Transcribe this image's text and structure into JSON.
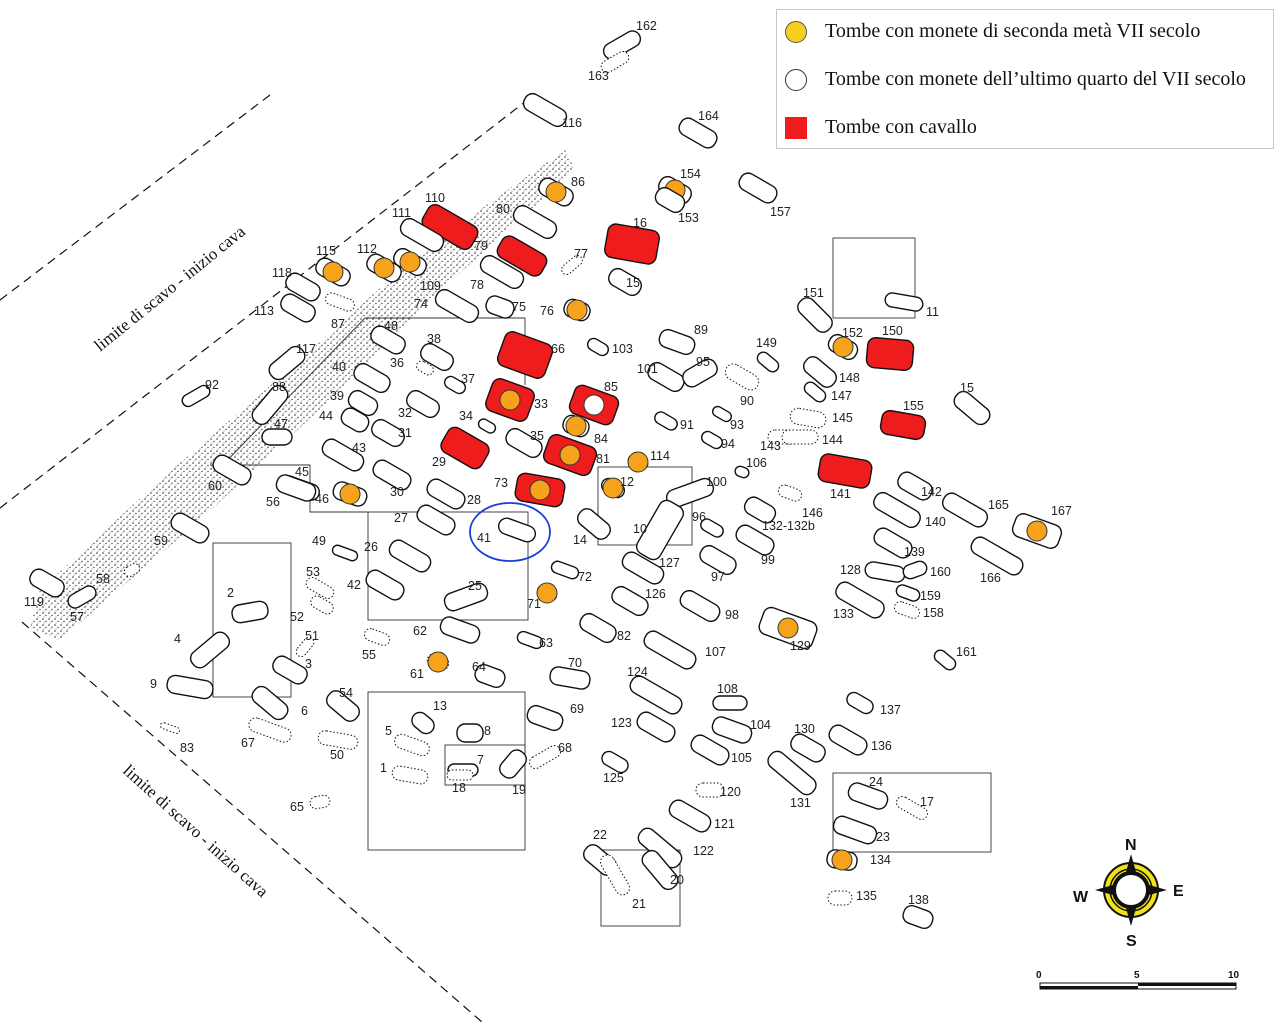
{
  "legend": {
    "items": [
      {
        "label": "Tombe con monete di seconda metà VII secolo",
        "symbol": "yellow-circle",
        "color": "#f9cf1f"
      },
      {
        "label": "Tombe con monete dell’ultimo quarto del VII secolo",
        "symbol": "white-circle",
        "color": "#ffffff"
      },
      {
        "label": "Tombe con cavallo",
        "symbol": "red-square",
        "color": "#ee1c1c"
      }
    ]
  },
  "boundaries": {
    "top_label": "limite di scavo - inizio cava",
    "bottom_label": "limite di scavo - inizio cava"
  },
  "compass": {
    "n": "N",
    "e": "E",
    "s": "S",
    "w": "W"
  },
  "scale": {
    "ticks": [
      "0",
      "5",
      "10"
    ]
  },
  "colors": {
    "horse": "#ee1c1c",
    "coin_marker": "#f7a21b",
    "highlight": "#1a3fd6"
  },
  "highlighted_tomb": "41",
  "tombs": [
    {
      "n": "162"
    },
    {
      "n": "163"
    },
    {
      "n": "116"
    },
    {
      "n": "164"
    },
    {
      "n": "86",
      "coin": true
    },
    {
      "n": "154",
      "coin": true
    },
    {
      "n": "153"
    },
    {
      "n": "157"
    },
    {
      "n": "110",
      "horse": true
    },
    {
      "n": "111"
    },
    {
      "n": "80"
    },
    {
      "n": "16",
      "horse": true
    },
    {
      "n": "79",
      "horse": true
    },
    {
      "n": "77"
    },
    {
      "n": "115",
      "coin": true
    },
    {
      "n": "112",
      "coin": true
    },
    {
      "n": "109",
      "coin": true
    },
    {
      "n": "118"
    },
    {
      "n": "78"
    },
    {
      "n": "15"
    },
    {
      "n": "113"
    },
    {
      "n": "74"
    },
    {
      "n": "75"
    },
    {
      "n": "76",
      "coin": true
    },
    {
      "n": "87"
    },
    {
      "n": "48"
    },
    {
      "n": "89"
    },
    {
      "n": "151"
    },
    {
      "n": "11"
    },
    {
      "n": "152",
      "coin": true
    },
    {
      "n": "150",
      "horse": true
    },
    {
      "n": "66",
      "horse": true
    },
    {
      "n": "103"
    },
    {
      "n": "38"
    },
    {
      "n": "117"
    },
    {
      "n": "36"
    },
    {
      "n": "40"
    },
    {
      "n": "37"
    },
    {
      "n": "101"
    },
    {
      "n": "95"
    },
    {
      "n": "149"
    },
    {
      "n": "90"
    },
    {
      "n": "148"
    },
    {
      "n": "147"
    },
    {
      "n": "92"
    },
    {
      "n": "88"
    },
    {
      "n": "85",
      "horse": true,
      "coin_late": true
    },
    {
      "n": "33",
      "horse": true,
      "coin": true
    },
    {
      "n": "39"
    },
    {
      "n": "15b",
      "label": "15"
    },
    {
      "n": "155",
      "horse": true
    },
    {
      "n": "145"
    },
    {
      "n": "44"
    },
    {
      "n": "32"
    },
    {
      "n": "34"
    },
    {
      "n": "91"
    },
    {
      "n": "93"
    },
    {
      "n": "143"
    },
    {
      "n": "144"
    },
    {
      "n": "47"
    },
    {
      "n": "31"
    },
    {
      "n": "35"
    },
    {
      "n": "84",
      "coin": true
    },
    {
      "n": "94"
    },
    {
      "n": "29",
      "horse": true
    },
    {
      "n": "43"
    },
    {
      "n": "81",
      "horse": true,
      "coin": true
    },
    {
      "n": "114",
      "coin": true
    },
    {
      "n": "106"
    },
    {
      "n": "141",
      "horse": true
    },
    {
      "n": "45"
    },
    {
      "n": "60"
    },
    {
      "n": "30"
    },
    {
      "n": "73",
      "horse": true,
      "coin": true
    },
    {
      "n": "12",
      "coin": true
    },
    {
      "n": "100"
    },
    {
      "n": "142"
    },
    {
      "n": "165"
    },
    {
      "n": "167",
      "coin": true
    },
    {
      "n": "56"
    },
    {
      "n": "46",
      "coin": true
    },
    {
      "n": "28"
    },
    {
      "n": "146"
    },
    {
      "n": "27"
    },
    {
      "n": "96"
    },
    {
      "n": "132-132b"
    },
    {
      "n": "140"
    },
    {
      "n": "59"
    },
    {
      "n": "41"
    },
    {
      "n": "14"
    },
    {
      "n": "10"
    },
    {
      "n": "99"
    },
    {
      "n": "49"
    },
    {
      "n": "26"
    },
    {
      "n": "139"
    },
    {
      "n": "127"
    },
    {
      "n": "128"
    },
    {
      "n": "160"
    },
    {
      "n": "166"
    },
    {
      "n": "53"
    },
    {
      "n": "58"
    },
    {
      "n": "72"
    },
    {
      "n": "97"
    },
    {
      "n": "42"
    },
    {
      "n": "25"
    },
    {
      "n": "159"
    },
    {
      "n": "126"
    },
    {
      "n": "119"
    },
    {
      "n": "57"
    },
    {
      "n": "52"
    },
    {
      "n": "71",
      "coin": true
    },
    {
      "n": "133"
    },
    {
      "n": "158"
    },
    {
      "n": "98"
    },
    {
      "n": "2"
    },
    {
      "n": "62"
    },
    {
      "n": "51"
    },
    {
      "n": "82"
    },
    {
      "n": "129",
      "coin": true
    },
    {
      "n": "4"
    },
    {
      "n": "63"
    },
    {
      "n": "55"
    },
    {
      "n": "107"
    },
    {
      "n": "161"
    },
    {
      "n": "3"
    },
    {
      "n": "61",
      "coin": true
    },
    {
      "n": "64"
    },
    {
      "n": "70"
    },
    {
      "n": "124"
    },
    {
      "n": "9"
    },
    {
      "n": "108"
    },
    {
      "n": "54"
    },
    {
      "n": "13"
    },
    {
      "n": "6"
    },
    {
      "n": "137"
    },
    {
      "n": "69"
    },
    {
      "n": "123"
    },
    {
      "n": "104"
    },
    {
      "n": "130"
    },
    {
      "n": "8"
    },
    {
      "n": "5"
    },
    {
      "n": "67"
    },
    {
      "n": "83"
    },
    {
      "n": "50"
    },
    {
      "n": "136"
    },
    {
      "n": "68"
    },
    {
      "n": "105"
    },
    {
      "n": "1"
    },
    {
      "n": "7"
    },
    {
      "n": "125"
    },
    {
      "n": "131"
    },
    {
      "n": "18"
    },
    {
      "n": "19"
    },
    {
      "n": "24"
    },
    {
      "n": "120"
    },
    {
      "n": "17"
    },
    {
      "n": "65"
    },
    {
      "n": "121"
    },
    {
      "n": "23"
    },
    {
      "n": "22"
    },
    {
      "n": "122"
    },
    {
      "n": "134",
      "coin": true
    },
    {
      "n": "20"
    },
    {
      "n": "135"
    },
    {
      "n": "21"
    },
    {
      "n": "138"
    }
  ]
}
